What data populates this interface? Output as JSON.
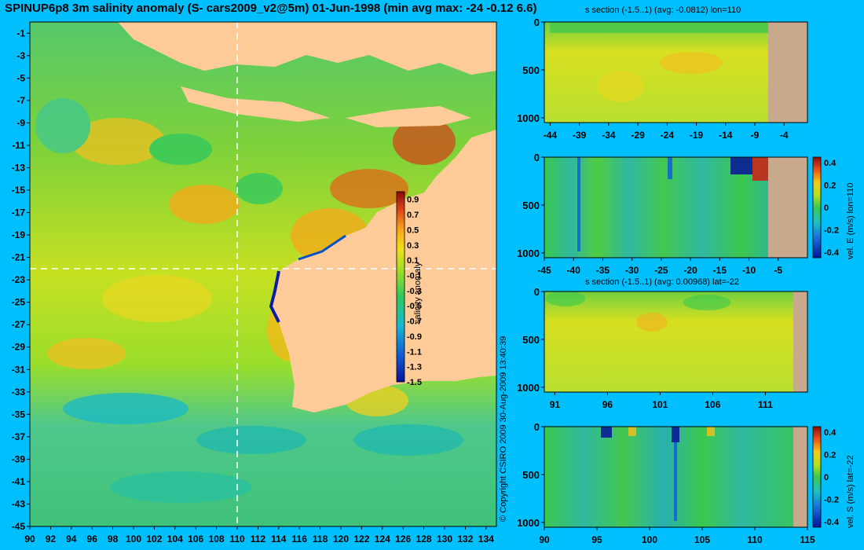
{
  "main_title": "SPINUP6p8 3m salinity anomaly (S- cars2009_v2@5m) 01-Jun-1998 (min avg max: -24 -0.12 6.6)",
  "copyright": "© Copyright CSIRO 2009   30-Aug-2009 13:40:39",
  "colors": {
    "background": "#00BFFF",
    "land": "#FFCC99",
    "section_land": "#C8A98C",
    "guide": "#FFFFFF"
  },
  "chart_data": [
    {
      "type": "heatmap",
      "name": "map",
      "xlim": [
        90,
        135
      ],
      "ylim": [
        -45,
        0
      ],
      "x_ticks": [
        "90",
        "92",
        "94",
        "96",
        "98",
        "100",
        "102",
        "104",
        "106",
        "108",
        "110",
        "112",
        "114",
        "116",
        "118",
        "120",
        "122",
        "124",
        "126",
        "128",
        "130",
        "132",
        "134"
      ],
      "y_ticks": [
        "-1",
        "-3",
        "-5",
        "-7",
        "-9",
        "-11",
        "-13",
        "-15",
        "-17",
        "-19",
        "-21",
        "-23",
        "-25",
        "-27",
        "-29",
        "-31",
        "-33",
        "-35",
        "-37",
        "-39",
        "-41",
        "-43",
        "-45"
      ],
      "guide_lon": 110,
      "guide_lat": -22,
      "colorbar": {
        "label": "salinity anomaly",
        "ticks": [
          "0.9",
          "0.7",
          "0.5",
          "0.3",
          "0.1",
          "-0.1",
          "-0.3",
          "-0.5",
          "-0.7",
          "-0.9",
          "-1.1",
          "-1.3",
          "-1.5"
        ],
        "range": [
          -1.5,
          1.0
        ]
      }
    },
    {
      "type": "heatmap",
      "name": "salinity section lon=110",
      "title": "s section (-1.5..1) (avg: -0.0812) lon=110",
      "xlim": [
        -45,
        0
      ],
      "ylim": [
        1050,
        0
      ],
      "x_ticks": [
        "-44",
        "-39",
        "-34",
        "-29",
        "-24",
        "-19",
        "-14",
        "-9",
        "-4"
      ],
      "y_ticks": [
        "0",
        "500",
        "1000"
      ]
    },
    {
      "type": "heatmap",
      "name": "velocity E section lon=110",
      "xlim": [
        -45,
        0
      ],
      "ylim": [
        1050,
        0
      ],
      "x_ticks": [
        "-45",
        "-40",
        "-35",
        "-30",
        "-25",
        "-20",
        "-15",
        "-10",
        "-5"
      ],
      "y_ticks": [
        "0",
        "500",
        "1000"
      ],
      "colorbar": {
        "label": "vel. E (m/s) lon=110",
        "ticks": [
          "0.4",
          "0.2",
          "0",
          "-0.2",
          "-0.4"
        ],
        "range": [
          -0.45,
          0.45
        ]
      }
    },
    {
      "type": "heatmap",
      "name": "salinity section lat=-22",
      "title": "s section (-1.5..1) (avg: 0.00968) lat=-22",
      "xlim": [
        90,
        115
      ],
      "ylim": [
        1050,
        0
      ],
      "x_ticks": [
        "91",
        "96",
        "101",
        "106",
        "111"
      ],
      "y_ticks": [
        "0",
        "500",
        "1000"
      ]
    },
    {
      "type": "heatmap",
      "name": "velocity S section lat=-22",
      "xlim": [
        90,
        115
      ],
      "ylim": [
        1050,
        0
      ],
      "x_ticks": [
        "90",
        "95",
        "100",
        "105",
        "110",
        "115"
      ],
      "y_ticks": [
        "0",
        "500",
        "1000"
      ],
      "colorbar": {
        "label": "vel. S (m/s) lat=-22",
        "ticks": [
          "0.4",
          "0.2",
          "0",
          "-0.2",
          "-0.4"
        ],
        "range": [
          -0.45,
          0.45
        ]
      }
    }
  ]
}
